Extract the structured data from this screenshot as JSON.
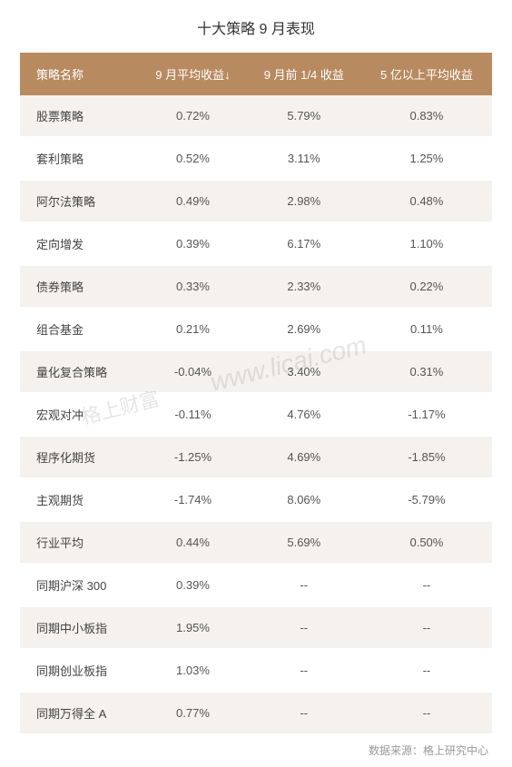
{
  "title": "十大策略 9 月表现",
  "columns": [
    "策略名称",
    "9 月平均收益↓",
    "9 月前 1/4 收益",
    "5 亿以上平均收益"
  ],
  "rows": [
    {
      "name": "股票策略",
      "c1": "0.72%",
      "c2": "5.79%",
      "c3": "0.83%"
    },
    {
      "name": "套利策略",
      "c1": "0.52%",
      "c2": "3.11%",
      "c3": "1.25%"
    },
    {
      "name": "阿尔法策略",
      "c1": "0.49%",
      "c2": "2.98%",
      "c3": "0.48%"
    },
    {
      "name": "定向增发",
      "c1": "0.39%",
      "c2": "6.17%",
      "c3": "1.10%"
    },
    {
      "name": "债券策略",
      "c1": "0.33%",
      "c2": "2.33%",
      "c3": "0.22%"
    },
    {
      "name": "组合基金",
      "c1": "0.21%",
      "c2": "2.69%",
      "c3": "0.11%"
    },
    {
      "name": "量化复合策略",
      "c1": "-0.04%",
      "c2": "3.40%",
      "c3": "0.31%"
    },
    {
      "name": "宏观对冲",
      "c1": "-0.11%",
      "c2": "4.76%",
      "c3": "-1.17%"
    },
    {
      "name": "程序化期货",
      "c1": "-1.25%",
      "c2": "4.69%",
      "c3": "-1.85%"
    },
    {
      "name": "主观期货",
      "c1": "-1.74%",
      "c2": "8.06%",
      "c3": "-5.79%"
    },
    {
      "name": "行业平均",
      "c1": "0.44%",
      "c2": "5.69%",
      "c3": "0.50%"
    },
    {
      "name": "同期沪深 300",
      "c1": "0.39%",
      "c2": "--",
      "c3": "--"
    },
    {
      "name": "同期中小板指",
      "c1": "1.95%",
      "c2": "--",
      "c3": "--"
    },
    {
      "name": "同期创业板指",
      "c1": "1.03%",
      "c2": "--",
      "c3": "--"
    },
    {
      "name": "同期万得全 A",
      "c1": "0.77%",
      "c2": "--",
      "c3": "--"
    }
  ],
  "source": "数据来源：格上研究中心",
  "watermark_url": "www.licai.com",
  "watermark_text": "格上财富",
  "styling": {
    "header_bg": "#b88a5f",
    "header_color": "#ffffff",
    "row_odd_bg": "#f4f1ee",
    "row_even_bg": "#ffffff",
    "text_color": "#555555",
    "title_color": "#333333",
    "source_color": "#999999",
    "title_fontsize": 16,
    "header_fontsize": 13,
    "cell_fontsize": 13,
    "source_fontsize": 12,
    "column_widths": [
      "28%",
      "24%",
      "24%",
      "24%"
    ]
  }
}
